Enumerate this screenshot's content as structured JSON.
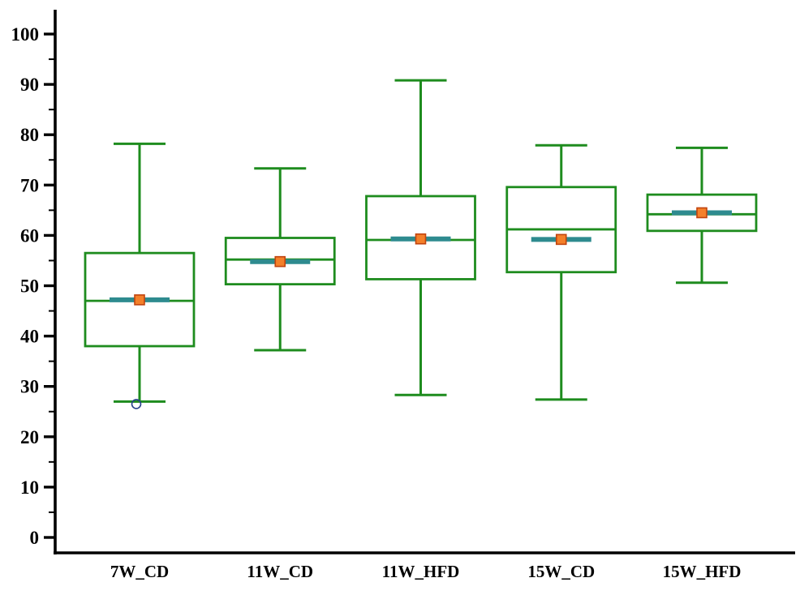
{
  "chart_data": {
    "type": "box",
    "title": "",
    "xlabel": "",
    "ylabel": "",
    "ylim": [
      0,
      100
    ],
    "ytick_step": 10,
    "minor_tick_step": 5,
    "ytick_labels": [
      "0",
      "10",
      "20",
      "30",
      "40",
      "50",
      "60",
      "70",
      "80",
      "90",
      "100"
    ],
    "grid": false,
    "legend": false,
    "categories": [
      "7W_CD",
      "11W_CD",
      "11W_HFD",
      "15W_CD",
      "15W_HFD"
    ],
    "series": [
      {
        "category": "7W_CD",
        "whisker_low": 27.0,
        "q1": 38.0,
        "median": 47.0,
        "q3": 56.5,
        "whisker_high": 78.2,
        "mean": 47.2,
        "outliers": [
          26.5
        ]
      },
      {
        "category": "11W_CD",
        "whisker_low": 37.2,
        "q1": 50.3,
        "median": 55.2,
        "q3": 59.5,
        "whisker_high": 73.3,
        "mean": 54.8,
        "outliers": []
      },
      {
        "category": "11W_HFD",
        "whisker_low": 28.3,
        "q1": 51.3,
        "median": 59.1,
        "q3": 67.8,
        "whisker_high": 90.8,
        "mean": 59.3,
        "outliers": []
      },
      {
        "category": "15W_CD",
        "whisker_low": 27.4,
        "q1": 52.7,
        "median": 61.2,
        "q3": 69.6,
        "whisker_high": 77.9,
        "mean": 59.2,
        "outliers": []
      },
      {
        "category": "15W_HFD",
        "whisker_low": 50.6,
        "q1": 60.9,
        "median": 64.2,
        "q3": 68.1,
        "whisker_high": 77.4,
        "mean": 64.5,
        "outliers": []
      }
    ],
    "colors": {
      "box_stroke": "#1e8c1e",
      "box_fill": "#ffffff",
      "mean_marker_fill": "#f4802a",
      "mean_marker_stroke": "#c1440e",
      "mean_band": "#2e8b8f",
      "axis": "#000000",
      "outlier_stroke": "#27408b"
    }
  }
}
